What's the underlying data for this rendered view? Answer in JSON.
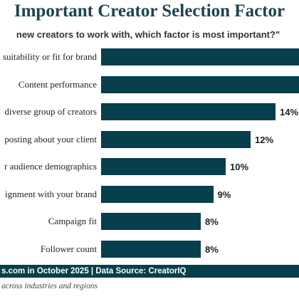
{
  "header": {
    "title": "Important Creator Selection Factor",
    "subtitle": "new creators to work with, which factor is most important?\""
  },
  "chart_data": {
    "type": "bar",
    "orientation": "horizontal",
    "categories": [
      "suitability or fit for brand",
      "Content performance",
      "diverse group of creators",
      "posting about your client",
      "r audience demographics",
      "ignment with your brand",
      "Campaign fit",
      "Follower count"
    ],
    "values": [
      null,
      null,
      14,
      12,
      10,
      9,
      8,
      8
    ],
    "value_labels": [
      "",
      "",
      "14%",
      "12%",
      "10%",
      "9%",
      "8%",
      "8%"
    ],
    "bar_color": "#073f4c",
    "xlim": [
      0,
      20
    ]
  },
  "footer": {
    "source": "s.com in October 2025 | Data Source: CreatorIQ",
    "note": "across industries and regions"
  }
}
